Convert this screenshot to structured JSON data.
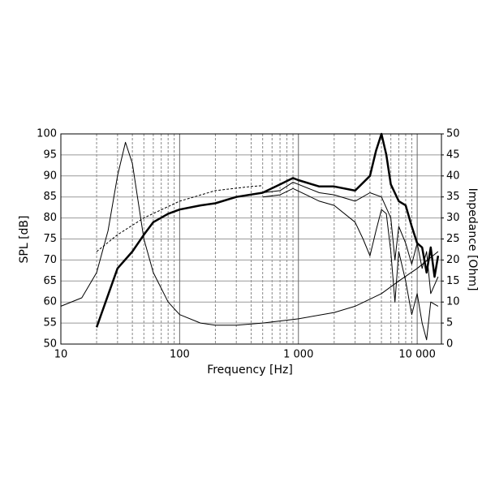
{
  "chart_data": {
    "type": "line",
    "xlabel": "Frequency [Hz]",
    "ylabel": "SPL [dB]",
    "y2label": "Impedance [Ohm]",
    "xscale": "log",
    "grid": true,
    "color": "#000000",
    "xlim": [
      10,
      16000
    ],
    "ylim": [
      50,
      100
    ],
    "y2lim": [
      0,
      50
    ],
    "xticks": [
      10,
      100,
      {
        "value": 1000,
        "label": "1 000"
      },
      {
        "value": 10000,
        "label": "10 000"
      }
    ],
    "xminorticks": [
      20,
      30,
      40,
      50,
      60,
      70,
      80,
      90,
      200,
      300,
      400,
      500,
      600,
      700,
      800,
      900,
      2000,
      3000,
      4000,
      5000,
      6000,
      7000,
      8000,
      9000
    ],
    "yticks": [
      50,
      55,
      60,
      65,
      70,
      75,
      80,
      85,
      90,
      95,
      100
    ],
    "y2ticks": [
      0,
      5,
      10,
      15,
      20,
      25,
      30,
      35,
      40,
      45,
      50
    ],
    "series": [
      {
        "line_width": 2.5,
        "dash": false,
        "x": [
          20,
          30,
          40,
          50,
          60,
          80,
          100,
          150,
          200,
          300,
          500,
          700,
          900,
          1000,
          1500,
          2000,
          3000,
          4000,
          4500,
          5000,
          5500,
          6000,
          7000,
          8000,
          9000,
          10000,
          11000,
          12000,
          13000,
          14000,
          15000
        ],
        "values": [
          54,
          68,
          72,
          76,
          79,
          81,
          82,
          83,
          83.5,
          85,
          86,
          88,
          89.5,
          89,
          87.5,
          87.5,
          86.5,
          90,
          96,
          100,
          95,
          88,
          84,
          83,
          78,
          74,
          73,
          67,
          73,
          66,
          71
        ]
      },
      {
        "line_width": 1,
        "dash": false,
        "x": [
          500,
          700,
          900,
          1000,
          1500,
          2000,
          3000,
          4000,
          5000,
          6000,
          6500,
          7000,
          8000,
          9000,
          10000,
          11000,
          12000,
          13000,
          15000
        ],
        "values": [
          86,
          86.5,
          88.5,
          88,
          86,
          85.5,
          84,
          86,
          85,
          80,
          70,
          78,
          74,
          69,
          74,
          68,
          72,
          62,
          66
        ]
      },
      {
        "line_width": 1,
        "dash": false,
        "x": [
          500,
          700,
          900,
          1500,
          2000,
          3000,
          3500,
          4000,
          4500,
          5000,
          5500,
          6000,
          6500,
          7000,
          8000,
          9000,
          10000,
          11000,
          12000,
          13000,
          15000
        ],
        "values": [
          85,
          85.5,
          87,
          84,
          83,
          79,
          75,
          71,
          77,
          82,
          81,
          72,
          60,
          72,
          65,
          57,
          62,
          55,
          51,
          60,
          59
        ]
      },
      {
        "line_width": 1,
        "dash": true,
        "x": [
          20,
          30,
          50,
          100,
          200,
          400,
          500
        ],
        "values": [
          72,
          76,
          80,
          84,
          86.5,
          87.5,
          87.7
        ]
      },
      {
        "line_width": 1,
        "dash": false,
        "axis": "y2",
        "x": [
          10,
          15,
          20,
          25,
          30,
          35,
          40,
          50,
          60,
          80,
          100,
          150,
          200,
          300,
          500,
          1000,
          2000,
          3000,
          5000,
          7000,
          10000,
          15000
        ],
        "values": [
          9,
          11,
          17,
          27,
          40,
          48,
          43,
          25,
          17,
          10,
          7,
          5,
          4.5,
          4.5,
          5,
          6,
          7.5,
          9,
          12,
          15,
          18,
          22
        ]
      }
    ]
  }
}
